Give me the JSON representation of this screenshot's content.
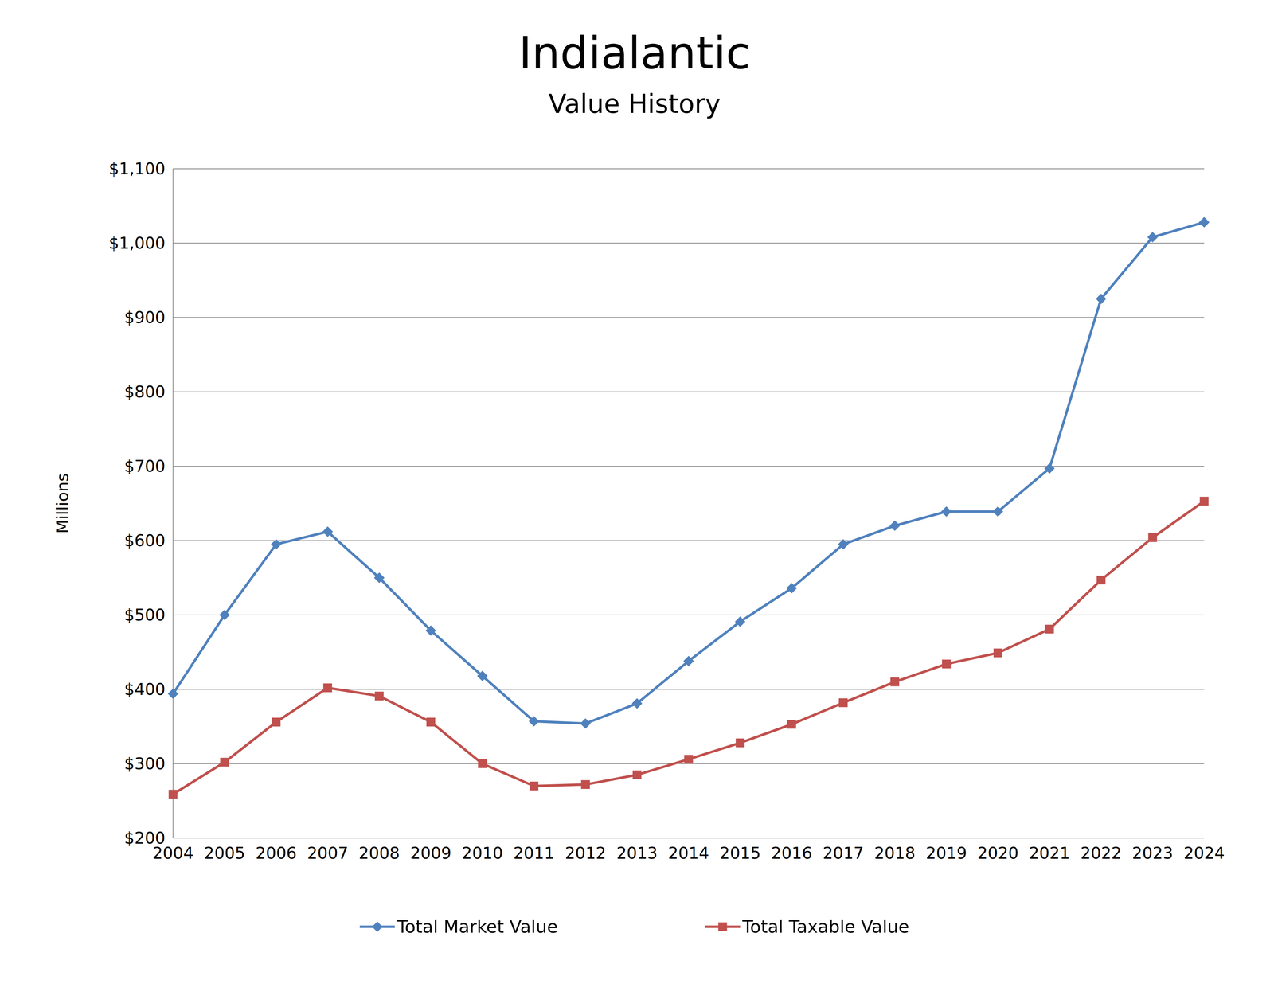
{
  "chart_data": {
    "type": "line",
    "title": "Indialantic",
    "subtitle": "Value History",
    "y_label": "Millions",
    "categories": [
      "2004",
      "2005",
      "2006",
      "2007",
      "2008",
      "2009",
      "2010",
      "2011",
      "2012",
      "2013",
      "2014",
      "2015",
      "2016",
      "2017",
      "2018",
      "2019",
      "2020",
      "2021",
      "2022",
      "2023",
      "2024"
    ],
    "series": [
      {
        "name": "Total Market Value",
        "color": "#4f81bd",
        "marker": "diamond",
        "values": [
          394,
          500,
          595,
          612,
          550,
          479,
          418,
          357,
          354,
          381,
          438,
          491,
          536,
          595,
          620,
          639,
          639,
          697,
          925,
          1008,
          1028
        ]
      },
      {
        "name": "Total Taxable Value",
        "color": "#c0504d",
        "marker": "square",
        "values": [
          259,
          302,
          356,
          402,
          391,
          356,
          300,
          270,
          272,
          285,
          306,
          328,
          353,
          382,
          410,
          434,
          449,
          481,
          547,
          604,
          653
        ]
      }
    ],
    "ylim": [
      200,
      1100
    ],
    "yticks": [
      {
        "value": 200,
        "label": "$200"
      },
      {
        "value": 300,
        "label": "$300"
      },
      {
        "value": 400,
        "label": "$400"
      },
      {
        "value": 500,
        "label": "$500"
      },
      {
        "value": 600,
        "label": "$600"
      },
      {
        "value": 700,
        "label": "$700"
      },
      {
        "value": 800,
        "label": "$800"
      },
      {
        "value": 900,
        "label": "$900"
      },
      {
        "value": 1000,
        "label": "$1,000"
      },
      {
        "value": 1100,
        "label": "$1,100"
      }
    ],
    "grid": true,
    "legend": "bottom"
  }
}
